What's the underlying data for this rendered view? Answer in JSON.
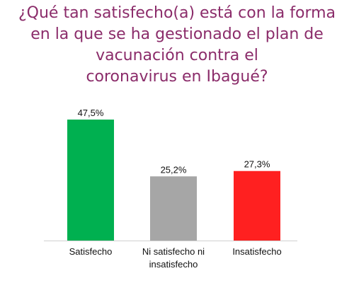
{
  "chart_data": {
    "type": "bar",
    "title_lines": [
      "¿Qué tan satisfecho(a) está con la forma",
      "en la que se ha gestionado el plan de",
      "vacunación contra el",
      "coronavirus en Ibagué?"
    ],
    "categories": [
      [
        "Satisfecho"
      ],
      [
        "Ni satisfecho ni",
        "insatisfecho"
      ],
      [
        "Insatisfecho"
      ]
    ],
    "values": [
      47.5,
      25.2,
      27.3
    ],
    "value_labels": [
      "47,5%",
      "25,2%",
      "27,3%"
    ],
    "colors": [
      "#00b050",
      "#a6a6a6",
      "#ff2020"
    ],
    "ylim": [
      0,
      50
    ],
    "grid": false,
    "legend": "none"
  }
}
